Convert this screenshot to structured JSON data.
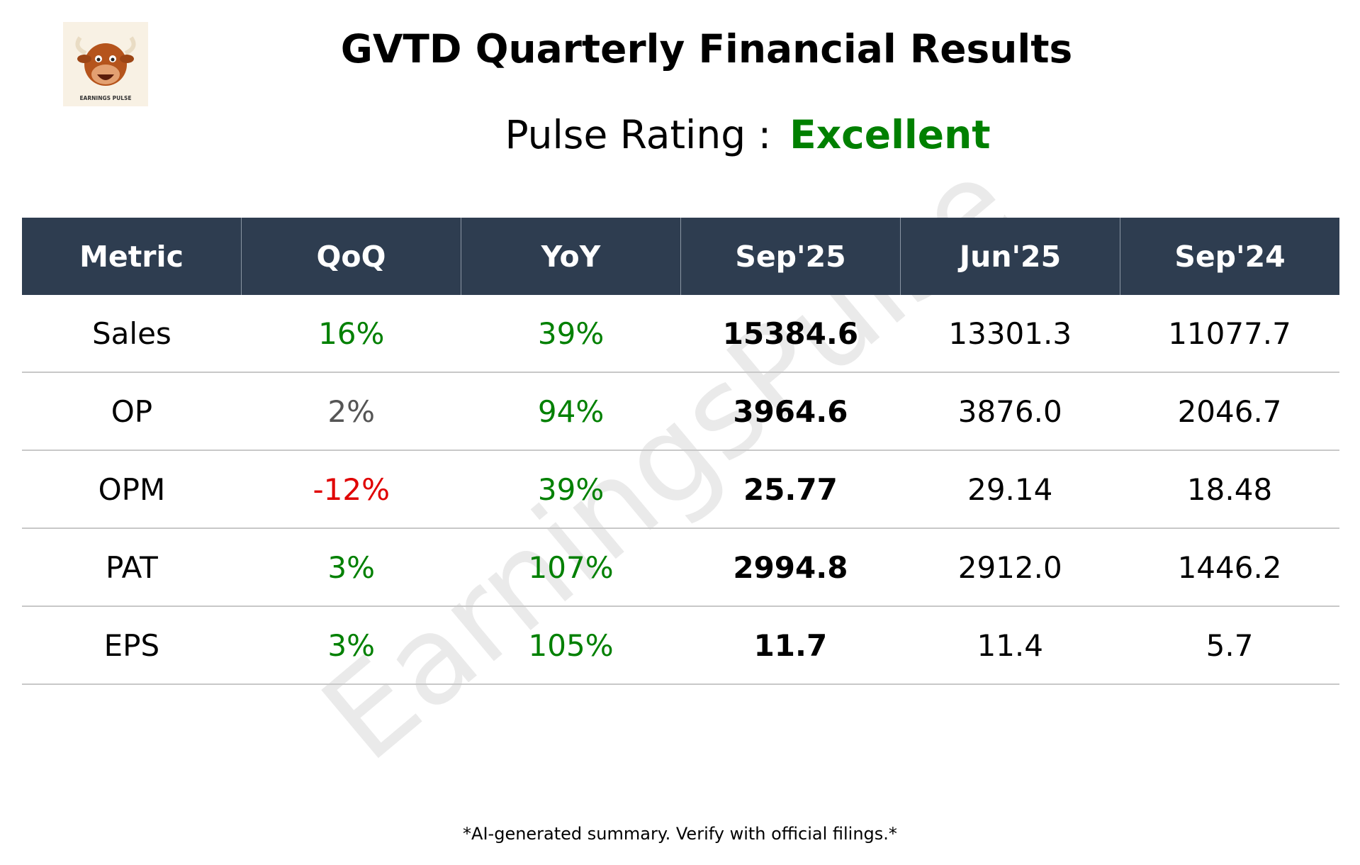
{
  "header": {
    "title": "GVTD Quarterly Financial Results",
    "rating_label": "Pulse Rating :",
    "rating_value": "Excellent",
    "rating_color": "#008000"
  },
  "logo": {
    "text": "EARNINGS PULSE"
  },
  "watermark": "EarningsPulse",
  "table": {
    "columns": [
      "Metric",
      "QoQ",
      "YoY",
      "Sep'25",
      "Jun'25",
      "Sep'24"
    ],
    "rows": [
      {
        "cells": [
          "Sales",
          "16%",
          "39%",
          "15384.6",
          "13301.3",
          "11077.7"
        ],
        "colors": [
          "#000000",
          "#008000",
          "#008000",
          "#000000",
          "#000000",
          "#000000"
        ]
      },
      {
        "cells": [
          "OP",
          "2%",
          "94%",
          "3964.6",
          "3876.0",
          "2046.7"
        ],
        "colors": [
          "#000000",
          "#555555",
          "#008000",
          "#000000",
          "#000000",
          "#000000"
        ]
      },
      {
        "cells": [
          "OPM",
          "-12%",
          "39%",
          "25.77",
          "29.14",
          "18.48"
        ],
        "colors": [
          "#000000",
          "#e00000",
          "#008000",
          "#000000",
          "#000000",
          "#000000"
        ]
      },
      {
        "cells": [
          "PAT",
          "3%",
          "107%",
          "2994.8",
          "2912.0",
          "1446.2"
        ],
        "colors": [
          "#000000",
          "#008000",
          "#008000",
          "#000000",
          "#000000",
          "#000000"
        ]
      },
      {
        "cells": [
          "EPS",
          "3%",
          "105%",
          "11.7",
          "11.4",
          "5.7"
        ],
        "colors": [
          "#000000",
          "#008000",
          "#008000",
          "#000000",
          "#000000",
          "#000000"
        ]
      }
    ]
  },
  "footer": "*AI-generated summary. Verify with official filings.*"
}
